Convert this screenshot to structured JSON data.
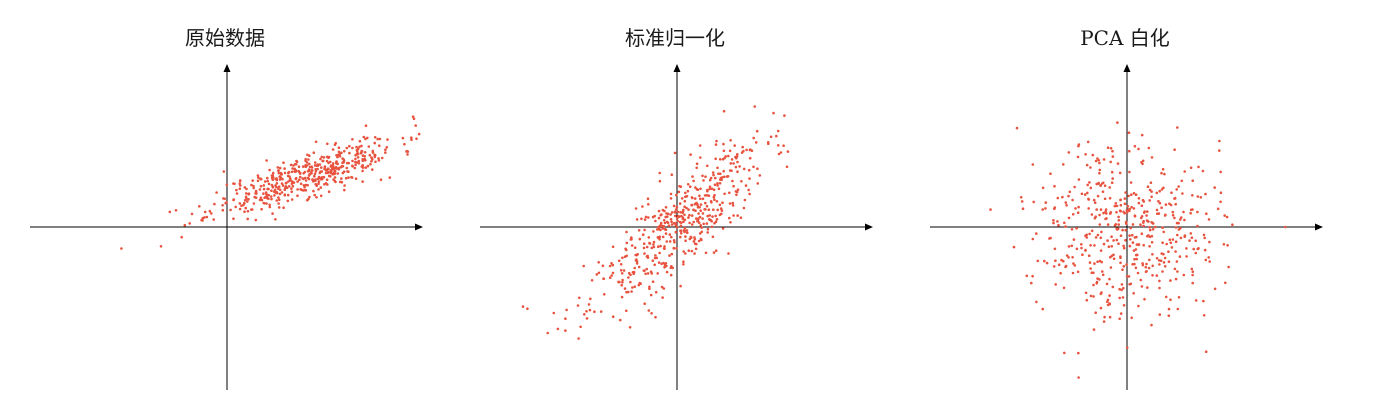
{
  "colors": {
    "point": "#e8533f",
    "axis": "#000000"
  },
  "chart_data": [
    {
      "type": "scatter",
      "title": "原始数据",
      "xlim": [
        -4.4,
        4.4
      ],
      "ylim": [
        -3.8,
        3.8
      ],
      "grid": false,
      "legend": "none",
      "n_points": 500,
      "mean": [
        1.8,
        1.2
      ],
      "std": [
        1.05,
        0.45
      ],
      "corr": 0.82,
      "outliers": [
        [
          -2.4,
          -0.5
        ],
        [
          -1.5,
          -0.45
        ],
        [
          -1.3,
          0.35
        ],
        [
          3.5,
          1.1
        ],
        [
          3.7,
          1.15
        ]
      ],
      "seed": 11
    },
    {
      "type": "scatter",
      "title": "标准归一化",
      "xlim": [
        -4.4,
        4.4
      ],
      "ylim": [
        -3.8,
        3.8
      ],
      "grid": false,
      "legend": "none",
      "n_points": 500,
      "mean": [
        0.0,
        0.0
      ],
      "std": [
        1.0,
        1.0
      ],
      "corr": 0.82,
      "outliers": [
        [
          -3.4,
          -1.9
        ],
        [
          -3.5,
          -1.85
        ],
        [
          -2.8,
          -2.0
        ],
        [
          2.3,
          1.9
        ],
        [
          2.5,
          1.4
        ]
      ],
      "seed": 23
    },
    {
      "type": "scatter",
      "title": "PCA 白化",
      "xlim": [
        -4.4,
        4.4
      ],
      "ylim": [
        -3.8,
        3.8
      ],
      "grid": false,
      "legend": "none",
      "n_points": 500,
      "mean": [
        0.0,
        0.0
      ],
      "std": [
        1.0,
        1.0
      ],
      "corr": 0.0,
      "outliers": [
        [
          -1.1,
          -3.5
        ],
        [
          -2.5,
          2.3
        ],
        [
          2.1,
          2.0
        ],
        [
          1.8,
          -2.9
        ],
        [
          3.6,
          0.0
        ]
      ],
      "seed": 37
    }
  ]
}
